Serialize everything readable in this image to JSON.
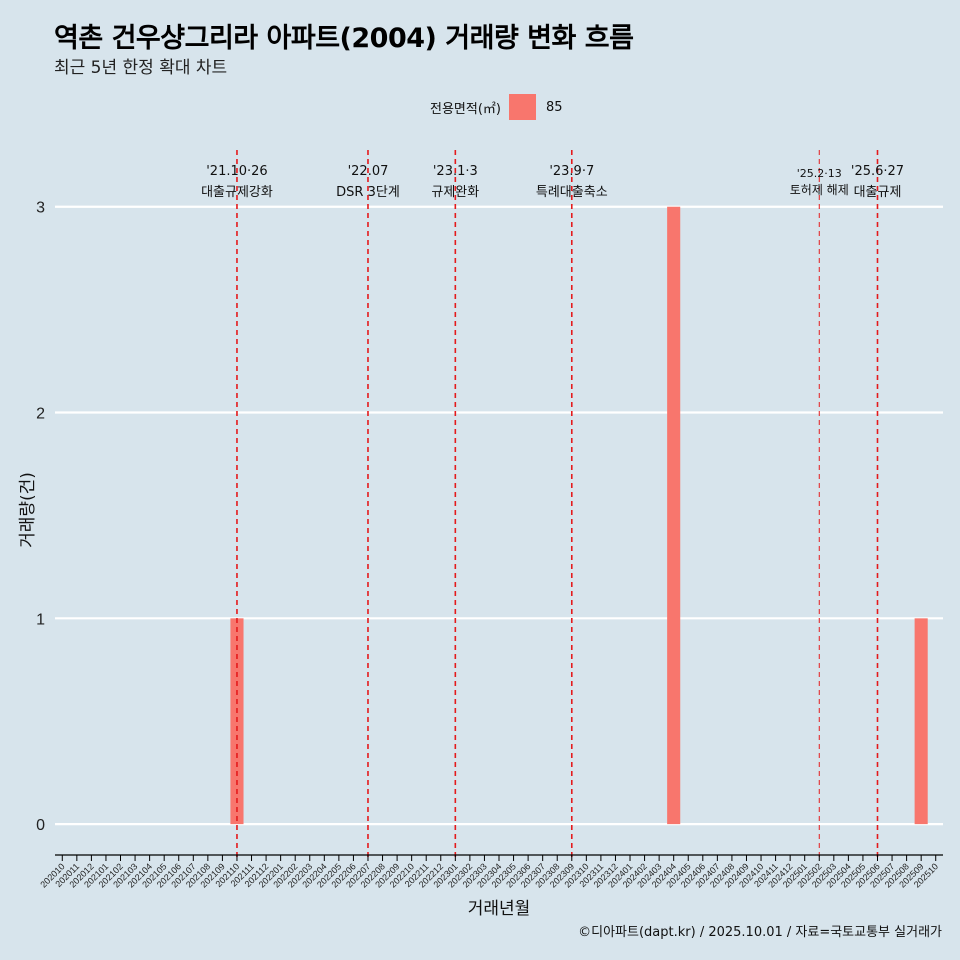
{
  "title": "역촌 건우샹그리라 아파트(2004) 거래량 변화 흐름",
  "subtitle": "최근 5년 한정 확대 차트",
  "caption": "©디아파트(dapt.kr) / 2025.10.01 / 자료=국토교통부 실거래가",
  "legend": {
    "title": "전용면적(㎡)",
    "items": [
      {
        "label": "85",
        "color": "#f8766d"
      }
    ]
  },
  "colors": {
    "background": "#d7e4ec",
    "bar": "#f8766d",
    "event_line": "#e41a1c",
    "grid": "#ffffff"
  },
  "chart_data": {
    "type": "bar",
    "xlabel": "거래년월",
    "ylabel": "거래량(건)",
    "ylim": [
      -0.15,
      3.3
    ],
    "yticks": [
      0,
      1,
      2,
      3
    ],
    "categories": [
      "202010",
      "202011",
      "202012",
      "202101",
      "202102",
      "202103",
      "202104",
      "202105",
      "202106",
      "202107",
      "202108",
      "202109",
      "202110",
      "202111",
      "202112",
      "202201",
      "202202",
      "202203",
      "202204",
      "202205",
      "202206",
      "202207",
      "202208",
      "202209",
      "202210",
      "202211",
      "202212",
      "202301",
      "202302",
      "202303",
      "202304",
      "202305",
      "202306",
      "202307",
      "202308",
      "202309",
      "202310",
      "202311",
      "202312",
      "202401",
      "202402",
      "202403",
      "202404",
      "202405",
      "202406",
      "202407",
      "202408",
      "202409",
      "202410",
      "202411",
      "202412",
      "202501",
      "202502",
      "202503",
      "202504",
      "202505",
      "202506",
      "202507",
      "202508",
      "202509",
      "202510"
    ],
    "series": [
      {
        "name": "85",
        "values": [
          0,
          0,
          0,
          0,
          0,
          0,
          0,
          0,
          0,
          0,
          0,
          0,
          1,
          0,
          0,
          0,
          0,
          0,
          0,
          0,
          0,
          0,
          0,
          0,
          0,
          0,
          0,
          0,
          0,
          0,
          0,
          0,
          0,
          0,
          0,
          0,
          0,
          0,
          0,
          0,
          0,
          0,
          3,
          0,
          0,
          0,
          0,
          0,
          0,
          0,
          0,
          0,
          0,
          0,
          0,
          0,
          0,
          0,
          0,
          1,
          0
        ]
      }
    ],
    "events": [
      {
        "category": "202110",
        "date": "'21.10·26",
        "label": "대출규제강화"
      },
      {
        "category": "202207",
        "date": "'22.07",
        "label": "DSR 3단계"
      },
      {
        "category": "202301",
        "date": "'23.1·3",
        "label": "규제완화"
      },
      {
        "category": "202309",
        "date": "'23.9·7",
        "label": "특례대출축소"
      },
      {
        "category": "202502",
        "date": "'25.2·13",
        "label": "토허제 해제"
      },
      {
        "category": "202506",
        "date": "'25.6·27",
        "label": "대출규제"
      }
    ]
  }
}
